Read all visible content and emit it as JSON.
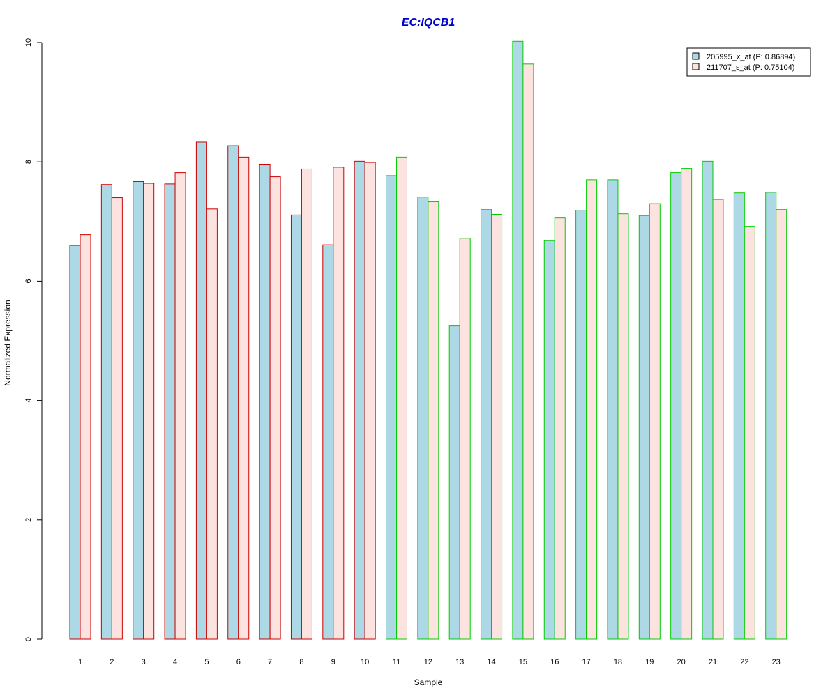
{
  "chart_data": {
    "type": "bar",
    "title": "EC:IQCB1",
    "title_color": "#0000cc",
    "xlabel": "Sample",
    "ylabel": "Normalized Expression",
    "ylim": [
      0,
      10
    ],
    "yticks": [
      0,
      2,
      4,
      6,
      8,
      10
    ],
    "grid": false,
    "legend_position": "top-right",
    "categories": [
      "1",
      "2",
      "3",
      "4",
      "5",
      "6",
      "7",
      "8",
      "9",
      "10",
      "11",
      "12",
      "13",
      "14",
      "15",
      "16",
      "17",
      "18",
      "19",
      "20",
      "21",
      "22",
      "23"
    ],
    "group_border_colors": [
      "#cc0000",
      "#cc0000",
      "#cc0000",
      "#cc0000",
      "#cc0000",
      "#cc0000",
      "#cc0000",
      "#cc0000",
      "#cc0000",
      "#cc0000",
      "#00cc00",
      "#00cc00",
      "#00cc00",
      "#00cc00",
      "#00cc00",
      "#00cc00",
      "#00cc00",
      "#00cc00",
      "#00cc00",
      "#00cc00",
      "#00cc00",
      "#00cc00",
      "#00cc00"
    ],
    "series": [
      {
        "name": "205995_x_at (P: 0.86894)",
        "fill": "#add8e6",
        "values": [
          6.6,
          7.62,
          7.67,
          7.63,
          8.33,
          8.27,
          7.95,
          7.11,
          6.61,
          8.01,
          7.77,
          7.41,
          5.25,
          7.2,
          10.02,
          6.68,
          7.19,
          7.7,
          7.1,
          7.82,
          8.01,
          7.48,
          7.49
        ]
      },
      {
        "name": "211707_s_at (P: 0.75104)",
        "fill": "#fde3df",
        "values": [
          6.78,
          7.4,
          7.64,
          7.82,
          7.21,
          8.08,
          7.75,
          7.88,
          7.91,
          7.99,
          8.08,
          7.33,
          6.72,
          7.12,
          9.64,
          7.06,
          7.7,
          7.13,
          7.3,
          7.89,
          7.37,
          6.92,
          7.2
        ]
      }
    ]
  }
}
